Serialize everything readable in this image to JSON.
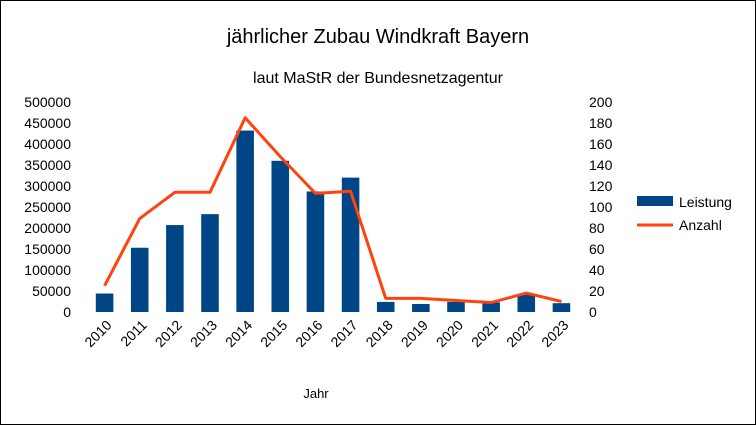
{
  "chart_data": {
    "type": "bar+line",
    "title": "jährlicher Zubau Windkraft Bayern",
    "subtitle": "laut MaStR der Bundesnetzagentur",
    "xlabel": "Jahr",
    "ylabel_left": "",
    "ylabel_right": "",
    "categories": [
      "2010",
      "2011",
      "2012",
      "2013",
      "2014",
      "2015",
      "2016",
      "2017",
      "2018",
      "2019",
      "2020",
      "2021",
      "2022",
      "2023"
    ],
    "series": [
      {
        "name": "Leistung",
        "type": "bar",
        "axis": "left",
        "color": "#004586",
        "values": [
          44000,
          153000,
          207000,
          233000,
          432000,
          360000,
          287000,
          320000,
          24000,
          19000,
          24000,
          23000,
          43000,
          21000
        ]
      },
      {
        "name": "Anzahl",
        "type": "line",
        "axis": "right",
        "color": "#ff420e",
        "values": [
          25,
          89,
          114,
          114,
          185,
          148,
          113,
          115,
          13,
          13,
          11,
          9,
          18,
          10
        ]
      }
    ],
    "ylim_left": [
      0,
      500000
    ],
    "yticks_left": [
      0,
      50000,
      100000,
      150000,
      200000,
      250000,
      300000,
      350000,
      400000,
      450000,
      500000
    ],
    "ylim_right": [
      0,
      200
    ],
    "yticks_right": [
      0,
      20,
      40,
      60,
      80,
      100,
      120,
      140,
      160,
      180,
      200
    ],
    "grid": false,
    "legend": "right"
  }
}
